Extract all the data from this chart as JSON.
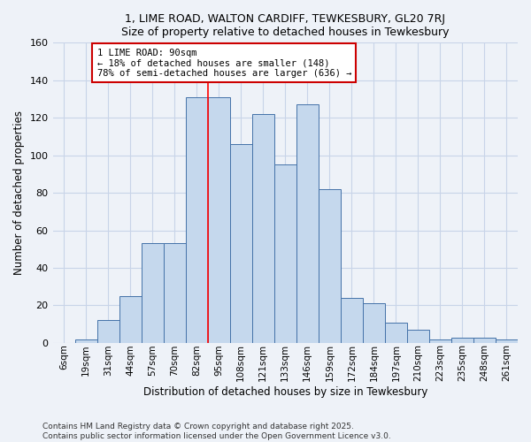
{
  "title": "1, LIME ROAD, WALTON CARDIFF, TEWKESBURY, GL20 7RJ",
  "subtitle": "Size of property relative to detached houses in Tewkesbury",
  "xlabel": "Distribution of detached houses by size in Tewkesbury",
  "ylabel": "Number of detached properties",
  "footer1": "Contains HM Land Registry data © Crown copyright and database right 2025.",
  "footer2": "Contains public sector information licensed under the Open Government Licence v3.0.",
  "bar_labels": [
    "6sqm",
    "19sqm",
    "31sqm",
    "44sqm",
    "57sqm",
    "70sqm",
    "82sqm",
    "95sqm",
    "108sqm",
    "121sqm",
    "133sqm",
    "146sqm",
    "159sqm",
    "172sqm",
    "184sqm",
    "197sqm",
    "210sqm",
    "223sqm",
    "235sqm",
    "248sqm",
    "261sqm"
  ],
  "values": [
    0,
    2,
    12,
    25,
    53,
    53,
    131,
    131,
    106,
    122,
    95,
    127,
    82,
    24,
    21,
    11,
    7,
    2,
    3,
    3,
    2
  ],
  "bar_color": "#c5d8ed",
  "bar_edge_color": "#4472a8",
  "annotation_line1": "1 LIME ROAD: 90sqm",
  "annotation_line2": "← 18% of detached houses are smaller (148)",
  "annotation_line3": "78% of semi-detached houses are larger (636) →",
  "annotation_box_color": "#ffffff",
  "annotation_box_edge": "#cc0000",
  "red_line_bin_index": 7,
  "ylim": [
    0,
    160
  ],
  "yticks": [
    0,
    20,
    40,
    60,
    80,
    100,
    120,
    140,
    160
  ],
  "bg_color": "#eef2f8",
  "grid_color": "#c8d4e8"
}
